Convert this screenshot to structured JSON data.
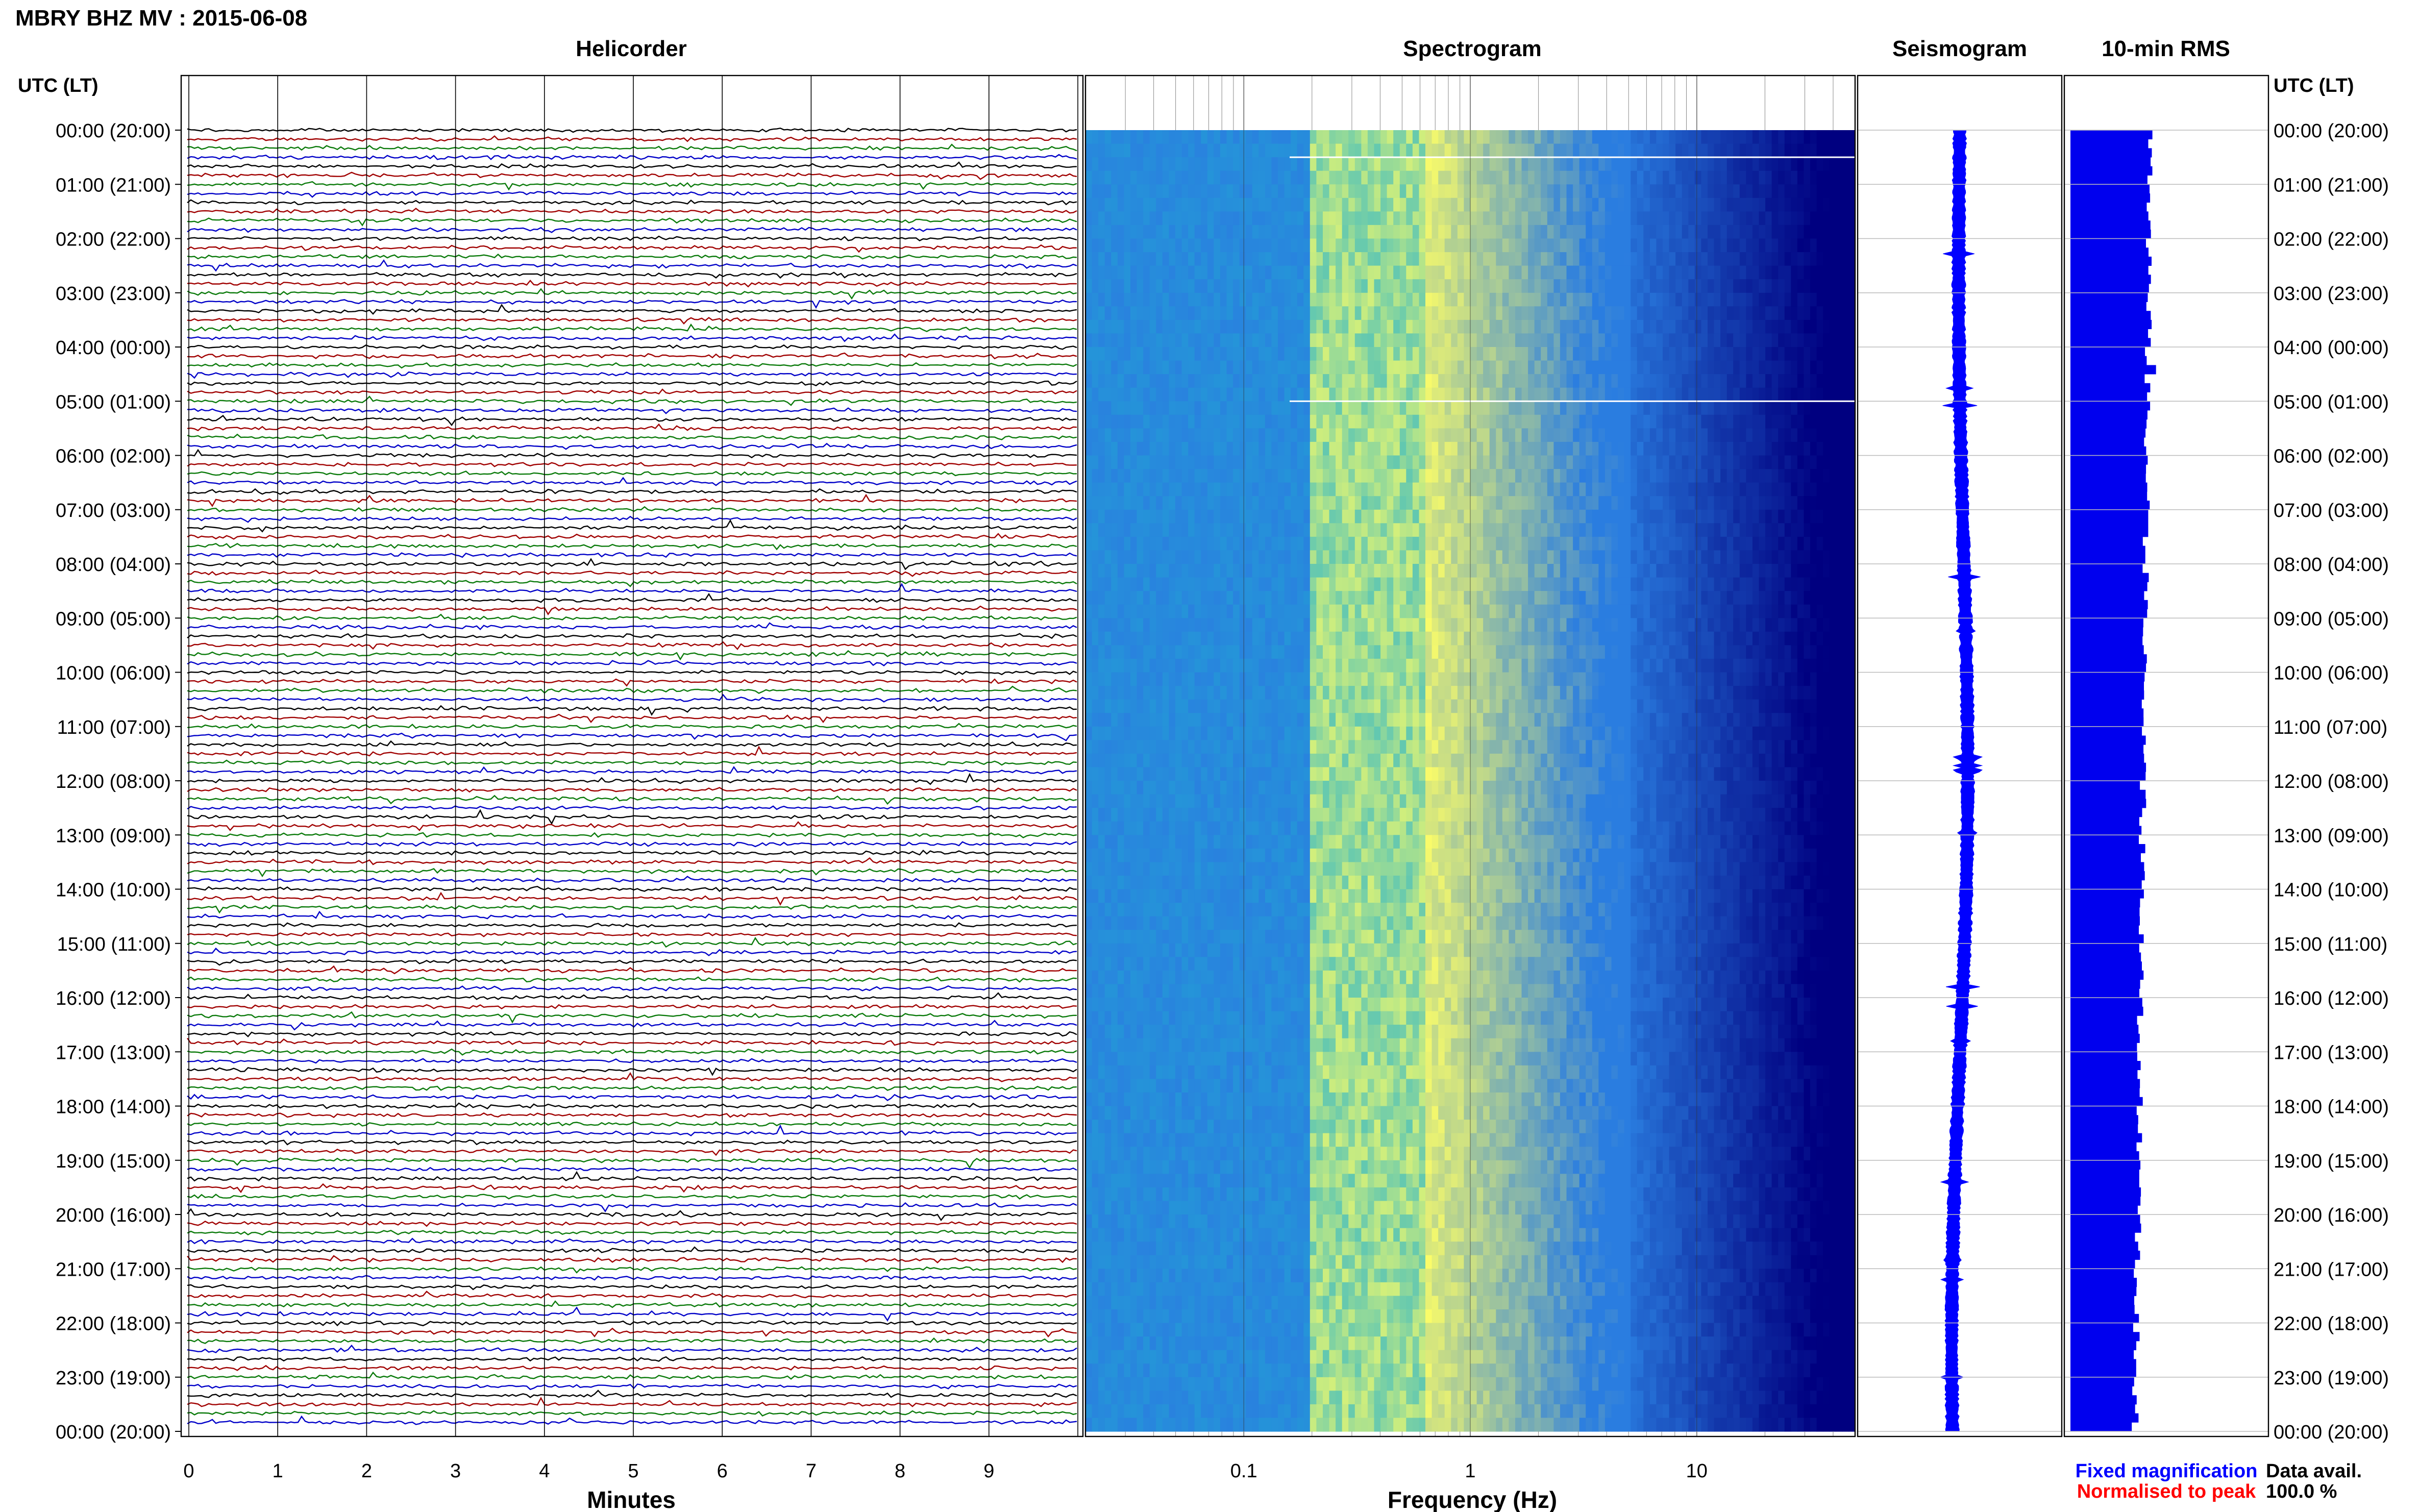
{
  "header": {
    "station_title": "MBRY BHZ MV : 2015-06-08"
  },
  "panels": {
    "helicorder": "Helicorder",
    "spectrogram": "Spectrogram",
    "seismogram": "Seismogram",
    "rms": "10-min RMS"
  },
  "axes": {
    "time_label_left": "UTC (LT)",
    "time_label_right": "UTC (LT)",
    "minutes_label": "Minutes",
    "frequency_label": "Frequency (Hz)"
  },
  "footer": {
    "fixed_magnification": "Fixed magnification",
    "normalised_to_peak": "Normalised to peak",
    "data_avail_label": "Data avail.",
    "data_avail_value": "100.0 %"
  },
  "colors": {
    "trace_colors": [
      "#000000",
      "#a00000",
      "#0a7a0a",
      "#0000c8"
    ],
    "seismogram": "#0000ff",
    "rms_fill": "#0000ee",
    "fixed_magnification": "#0000ff",
    "normalised_to_peak": "#ff0000",
    "spectrogram_ramp": [
      "#1fb0d0",
      "#ffff66",
      "#2a7de0",
      "#000080"
    ]
  },
  "chart_data": [
    {
      "type": "line",
      "name": "helicorder",
      "title": "Helicorder",
      "xlabel": "Minutes",
      "x_ticks": [
        "0",
        "1",
        "2",
        "3",
        "4",
        "5",
        "6",
        "7",
        "8",
        "9"
      ],
      "xlim": [
        0,
        10
      ],
      "rows_per_hour": 6,
      "row_minutes": 10,
      "time_labels": [
        "00:00 (20:00)",
        "01:00 (21:00)",
        "02:00 (22:00)",
        "03:00 (23:00)",
        "04:00 (00:00)",
        "05:00 (01:00)",
        "06:00 (02:00)",
        "07:00 (03:00)",
        "08:00 (04:00)",
        "09:00 (05:00)",
        "10:00 (06:00)",
        "11:00 (07:00)",
        "12:00 (08:00)",
        "13:00 (09:00)",
        "14:00 (10:00)",
        "15:00 (11:00)",
        "16:00 (12:00)",
        "17:00 (13:00)",
        "18:00 (14:00)",
        "19:00 (15:00)",
        "20:00 (16:00)",
        "21:00 (17:00)",
        "22:00 (18:00)",
        "23:00 (19:00)",
        "00:00 (20:00)"
      ]
    },
    {
      "type": "heatmap",
      "name": "spectrogram",
      "title": "Spectrogram",
      "xlabel": "Frequency (Hz)",
      "x_scale": "log",
      "xlim": [
        0.02,
        50
      ],
      "x_ticks": [
        "0.1",
        "1",
        "10"
      ]
    },
    {
      "type": "line",
      "name": "seismogram",
      "title": "Seismogram"
    },
    {
      "type": "bar",
      "name": "rms",
      "title": "10-min RMS"
    }
  ]
}
